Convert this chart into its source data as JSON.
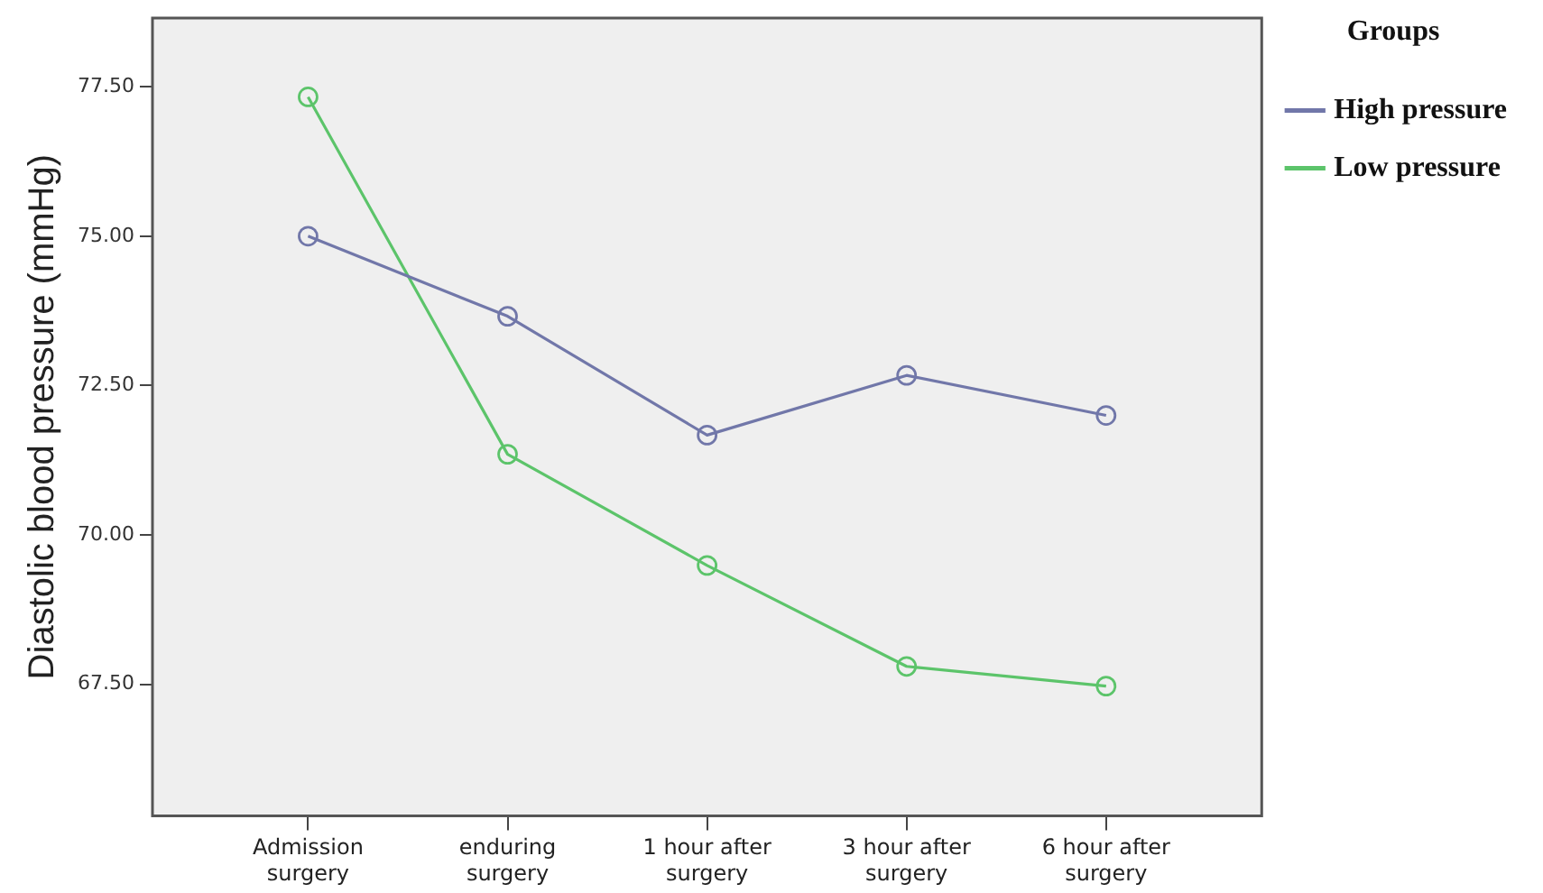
{
  "chart_data": {
    "type": "line",
    "ylabel": "Diastolic blood pressure (mmHg)",
    "legend_title": "Groups",
    "categories": [
      "Admission surgery",
      "enduring surgery",
      "1 hour after surgery",
      "3 hour after surgery",
      "6 hour after surgery"
    ],
    "series": [
      {
        "name": "High pressure",
        "color": "#7177a9",
        "values": [
          75.0,
          73.66,
          71.67,
          72.67,
          72.0
        ]
      },
      {
        "name": "Low pressure",
        "color": "#5cc46a",
        "values": [
          77.33,
          71.35,
          69.49,
          67.8,
          67.47
        ]
      }
    ],
    "ylim": [
      65.3,
      78.65
    ],
    "yticks": [
      {
        "value": 67.5,
        "label": "67.50"
      },
      {
        "value": 70,
        "label": "70.00"
      },
      {
        "value": 72.5,
        "label": "72.50"
      },
      {
        "value": 75,
        "label": "75.00"
      },
      {
        "value": 77.5,
        "label": "77.50"
      }
    ],
    "grid": false,
    "legend": "top right",
    "marker": "circle",
    "line_style": "solid"
  }
}
